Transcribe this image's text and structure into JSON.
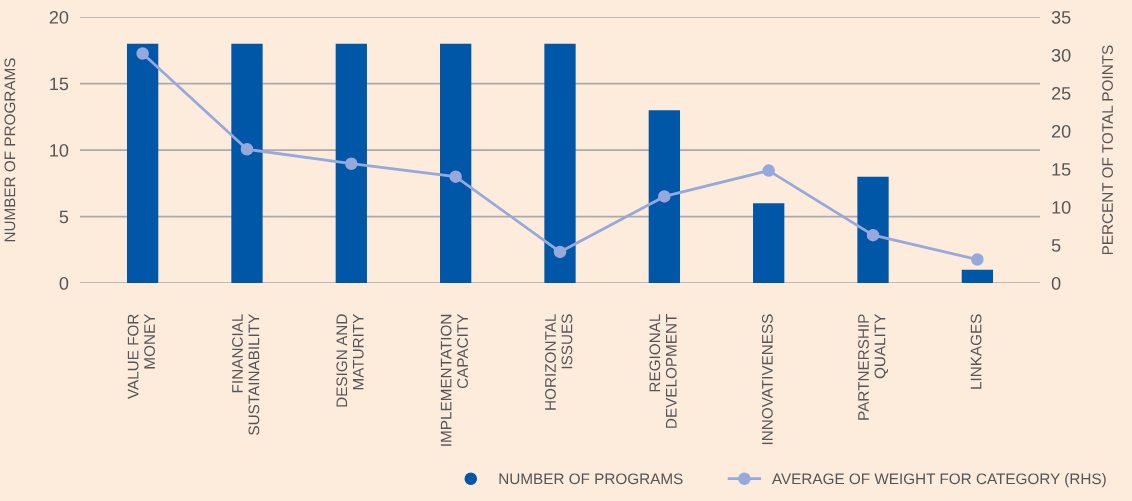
{
  "chart_data": {
    "type": "bar",
    "categories": [
      "VALUE FOR\nMONEY",
      "FINANCIAL\nSUSTAINABILITY",
      "DESIGN AND\nMATURITY",
      "IMPLEMENTATION\nCAPACITY",
      "HORIZONTAL\nISSUES",
      "REGIONAL\nDEVELOPMENT",
      "INNOVATIVENESS",
      "PARTNERSHIP\nQUALITY",
      "LINKAGES"
    ],
    "series": [
      {
        "name": "NUMBER OF PROGRAMS",
        "color": "#0057a8",
        "values": [
          18,
          18,
          18,
          18,
          18,
          13,
          6,
          8,
          1
        ]
      },
      {
        "name": "AVERAGE OF WEIGHT FOR CATEGORY (RHS)",
        "color": "#97a8dc",
        "type": "line",
        "axis": "y2",
        "marker": "circle",
        "values": [
          30.2,
          17.6,
          15.7,
          14.0,
          4.1,
          11.4,
          14.8,
          6.3,
          3.1
        ]
      }
    ],
    "ylabel": "NUMBER OF PROGRAMS",
    "y2label": "PERCENT OF TOTAL POINTS",
    "ylim": [
      0,
      20
    ],
    "yticks": [
      0,
      5,
      10,
      15,
      20
    ],
    "y2lim": [
      0,
      35
    ],
    "y2ticks": [
      0,
      5,
      10,
      15,
      20,
      25,
      30,
      35
    ],
    "grid": "y",
    "legend": "bottom"
  }
}
